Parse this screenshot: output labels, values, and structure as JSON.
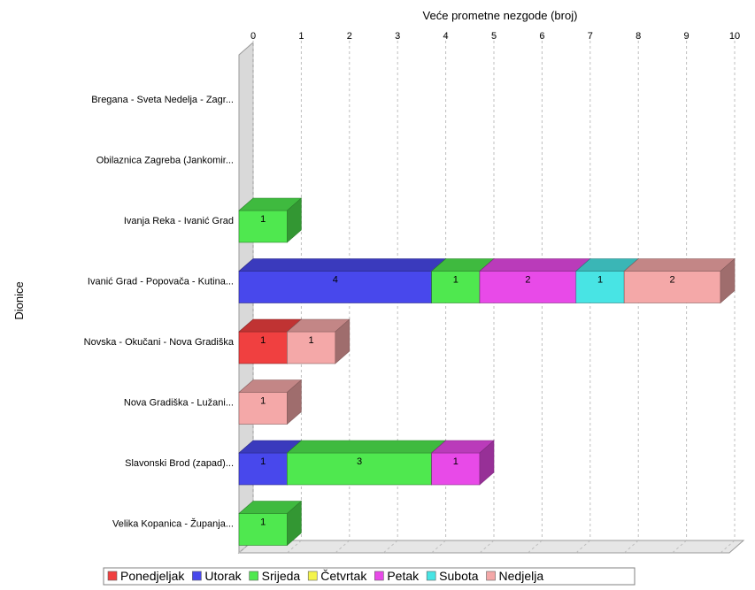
{
  "chart_data": {
    "type": "bar",
    "orientation": "horizontal",
    "stacked": true,
    "style": "3d",
    "title": "",
    "xlabel": "Veće prometne nezgode  (broj)",
    "ylabel": "Dionice",
    "xlim": [
      0,
      10
    ],
    "x_ticks": [
      "0",
      "1",
      "2",
      "3",
      "4",
      "5",
      "6",
      "7",
      "8",
      "9",
      "10"
    ],
    "x_axis_position": "top",
    "grid": true,
    "legend_position": "bottom",
    "categories": [
      "Bregana - Sveta Nedelja - Zagr...",
      "Obilaznica Zagreba (Jankomir...",
      "Ivanja Reka - Ivanić Grad",
      "Ivanić Grad - Popovača - Kutina...",
      "Novska - Okučani - Nova Gradiška",
      "Nova Gradiška - Lužani...",
      "Slavonski Brod (zapad)...",
      "Velika Kopanica - Županja..."
    ],
    "series": [
      {
        "name": "Ponedjeljak",
        "color": "#f04040",
        "values": [
          0,
          0,
          0,
          0,
          1,
          0,
          0,
          0
        ]
      },
      {
        "name": "Utorak",
        "color": "#4848ec",
        "values": [
          0,
          0,
          0,
          4,
          0,
          0,
          1,
          0
        ]
      },
      {
        "name": "Srijeda",
        "color": "#4fe84f",
        "values": [
          0,
          0,
          1,
          1,
          0,
          0,
          3,
          1
        ]
      },
      {
        "name": "Četvrtak",
        "color": "#f4f44c",
        "values": [
          0,
          0,
          0,
          0,
          0,
          0,
          0,
          0
        ]
      },
      {
        "name": "Petak",
        "color": "#e84ae8",
        "values": [
          0,
          0,
          0,
          2,
          0,
          0,
          1,
          0
        ]
      },
      {
        "name": "Subota",
        "color": "#48e4e4",
        "values": [
          0,
          0,
          0,
          1,
          0,
          0,
          0,
          0
        ]
      },
      {
        "name": "Nedjelja",
        "color": "#f4a8a8",
        "values": [
          0,
          0,
          0,
          2,
          1,
          1,
          0,
          0
        ]
      }
    ]
  }
}
